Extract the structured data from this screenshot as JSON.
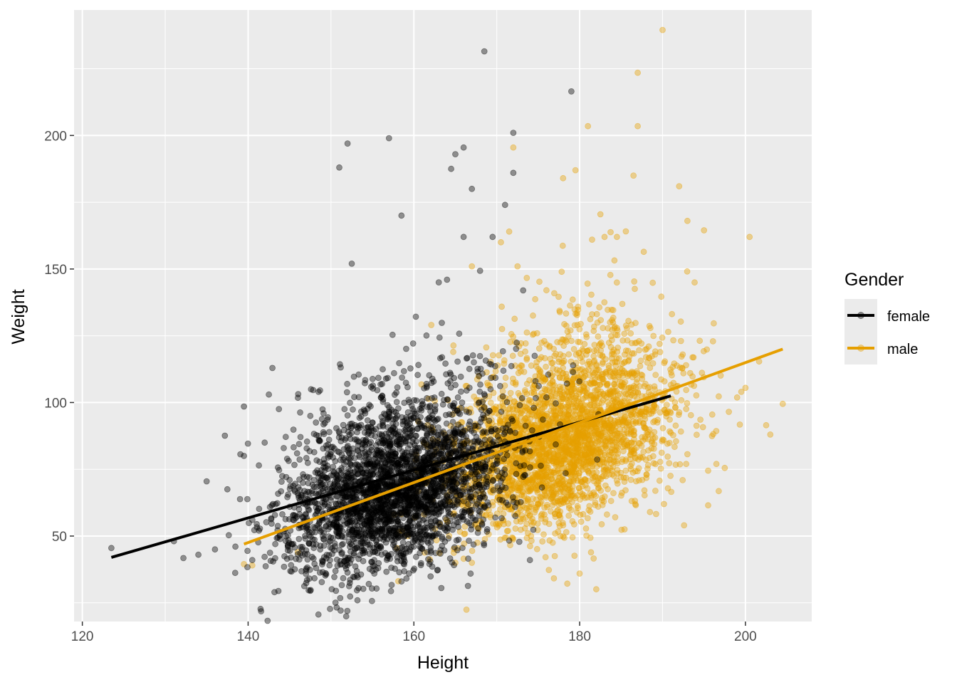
{
  "chart_data": {
    "type": "scatter",
    "title": "",
    "xlabel": "Height",
    "ylabel": "Weight",
    "xlim": [
      119,
      208
    ],
    "ylim": [
      18,
      247
    ],
    "x_ticks": [
      120,
      140,
      160,
      180,
      200
    ],
    "y_ticks": [
      50,
      100,
      150,
      200
    ],
    "grid": true,
    "legend": {
      "title": "Gender",
      "placement": "right"
    },
    "colors": {
      "panel": "#EBEBEB",
      "grid": "#FFFFFF",
      "female": "#000000",
      "male": "#E69F00"
    },
    "series": [
      {
        "name": "female",
        "color": "#000000",
        "point_alpha": 0.4,
        "center": [
          158,
          68
        ],
        "spread": [
          6.8,
          16
        ],
        "correlation": 0.38,
        "sample_count": 3000,
        "fit_line": [
          [
            123.5,
            42
          ],
          [
            191,
            102.5
          ]
        ],
        "highlight_points": [
          [
            123.5,
            45.5
          ],
          [
            135,
            70.5
          ],
          [
            136,
            45
          ],
          [
            134,
            43
          ],
          [
            137.5,
            67.5
          ],
          [
            139.5,
            98.5
          ],
          [
            139.5,
            80
          ],
          [
            140.5,
            41
          ],
          [
            146.5,
            45
          ],
          [
            147.5,
            29.5
          ],
          [
            151,
            188
          ],
          [
            152,
            197
          ],
          [
            157,
            199
          ],
          [
            152.5,
            152
          ],
          [
            158.5,
            170
          ],
          [
            168.5,
            231.5
          ],
          [
            172,
            201
          ],
          [
            179,
            216.5
          ],
          [
            172,
            186
          ],
          [
            171,
            174
          ],
          [
            166,
            195.5
          ],
          [
            164.5,
            187.5
          ],
          [
            165,
            193
          ],
          [
            167,
            180
          ],
          [
            169.5,
            162
          ],
          [
            166,
            162
          ],
          [
            163,
            145
          ],
          [
            164,
            146
          ],
          [
            174,
            41
          ],
          [
            158.5,
            33
          ],
          [
            155,
            37
          ],
          [
            149,
            36.5
          ],
          [
            158,
            42
          ],
          [
            145,
            71
          ],
          [
            143,
            62
          ],
          [
            148.5,
            104
          ],
          [
            147.5,
            95
          ],
          [
            142.5,
            103
          ],
          [
            142,
            85
          ]
        ]
      },
      {
        "name": "male",
        "color": "#E69F00",
        "point_alpha": 0.4,
        "center": [
          178,
          87
        ],
        "spread": [
          6.6,
          17
        ],
        "correlation": 0.4,
        "sample_count": 3000,
        "fit_line": [
          [
            139.5,
            47
          ],
          [
            204.5,
            120
          ]
        ],
        "highlight_points": [
          [
            190,
            239.5
          ],
          [
            187,
            223.5
          ],
          [
            187,
            203.5
          ],
          [
            181,
            203.5
          ],
          [
            184.5,
            162
          ],
          [
            172,
            195.5
          ],
          [
            200.5,
            162
          ],
          [
            204.5,
            99.5
          ],
          [
            202.5,
            91.5
          ],
          [
            203,
            88
          ],
          [
            200,
            105.5
          ],
          [
            199.5,
            104
          ],
          [
            198,
            96.5
          ],
          [
            196.5,
            77
          ],
          [
            195.5,
            61.5
          ],
          [
            195.5,
            74.5
          ],
          [
            197.5,
            75.5
          ],
          [
            196,
            95.5
          ],
          [
            139.5,
            39.5
          ],
          [
            140.5,
            39
          ],
          [
            146,
            44
          ],
          [
            165,
            40
          ],
          [
            166,
            41.5
          ],
          [
            167,
            40
          ],
          [
            177,
            42.5
          ],
          [
            175.5,
            48
          ],
          [
            193,
            168
          ],
          [
            195,
            164.5
          ],
          [
            192,
            181
          ],
          [
            186.5,
            185
          ],
          [
            182.5,
            170.5
          ],
          [
            183,
            162
          ],
          [
            178,
            184
          ],
          [
            179.5,
            187
          ],
          [
            181.5,
            161
          ],
          [
            171.5,
            164
          ],
          [
            170.5,
            160
          ],
          [
            172.5,
            151
          ],
          [
            167,
            151
          ],
          [
            160,
            69
          ]
        ]
      }
    ]
  }
}
